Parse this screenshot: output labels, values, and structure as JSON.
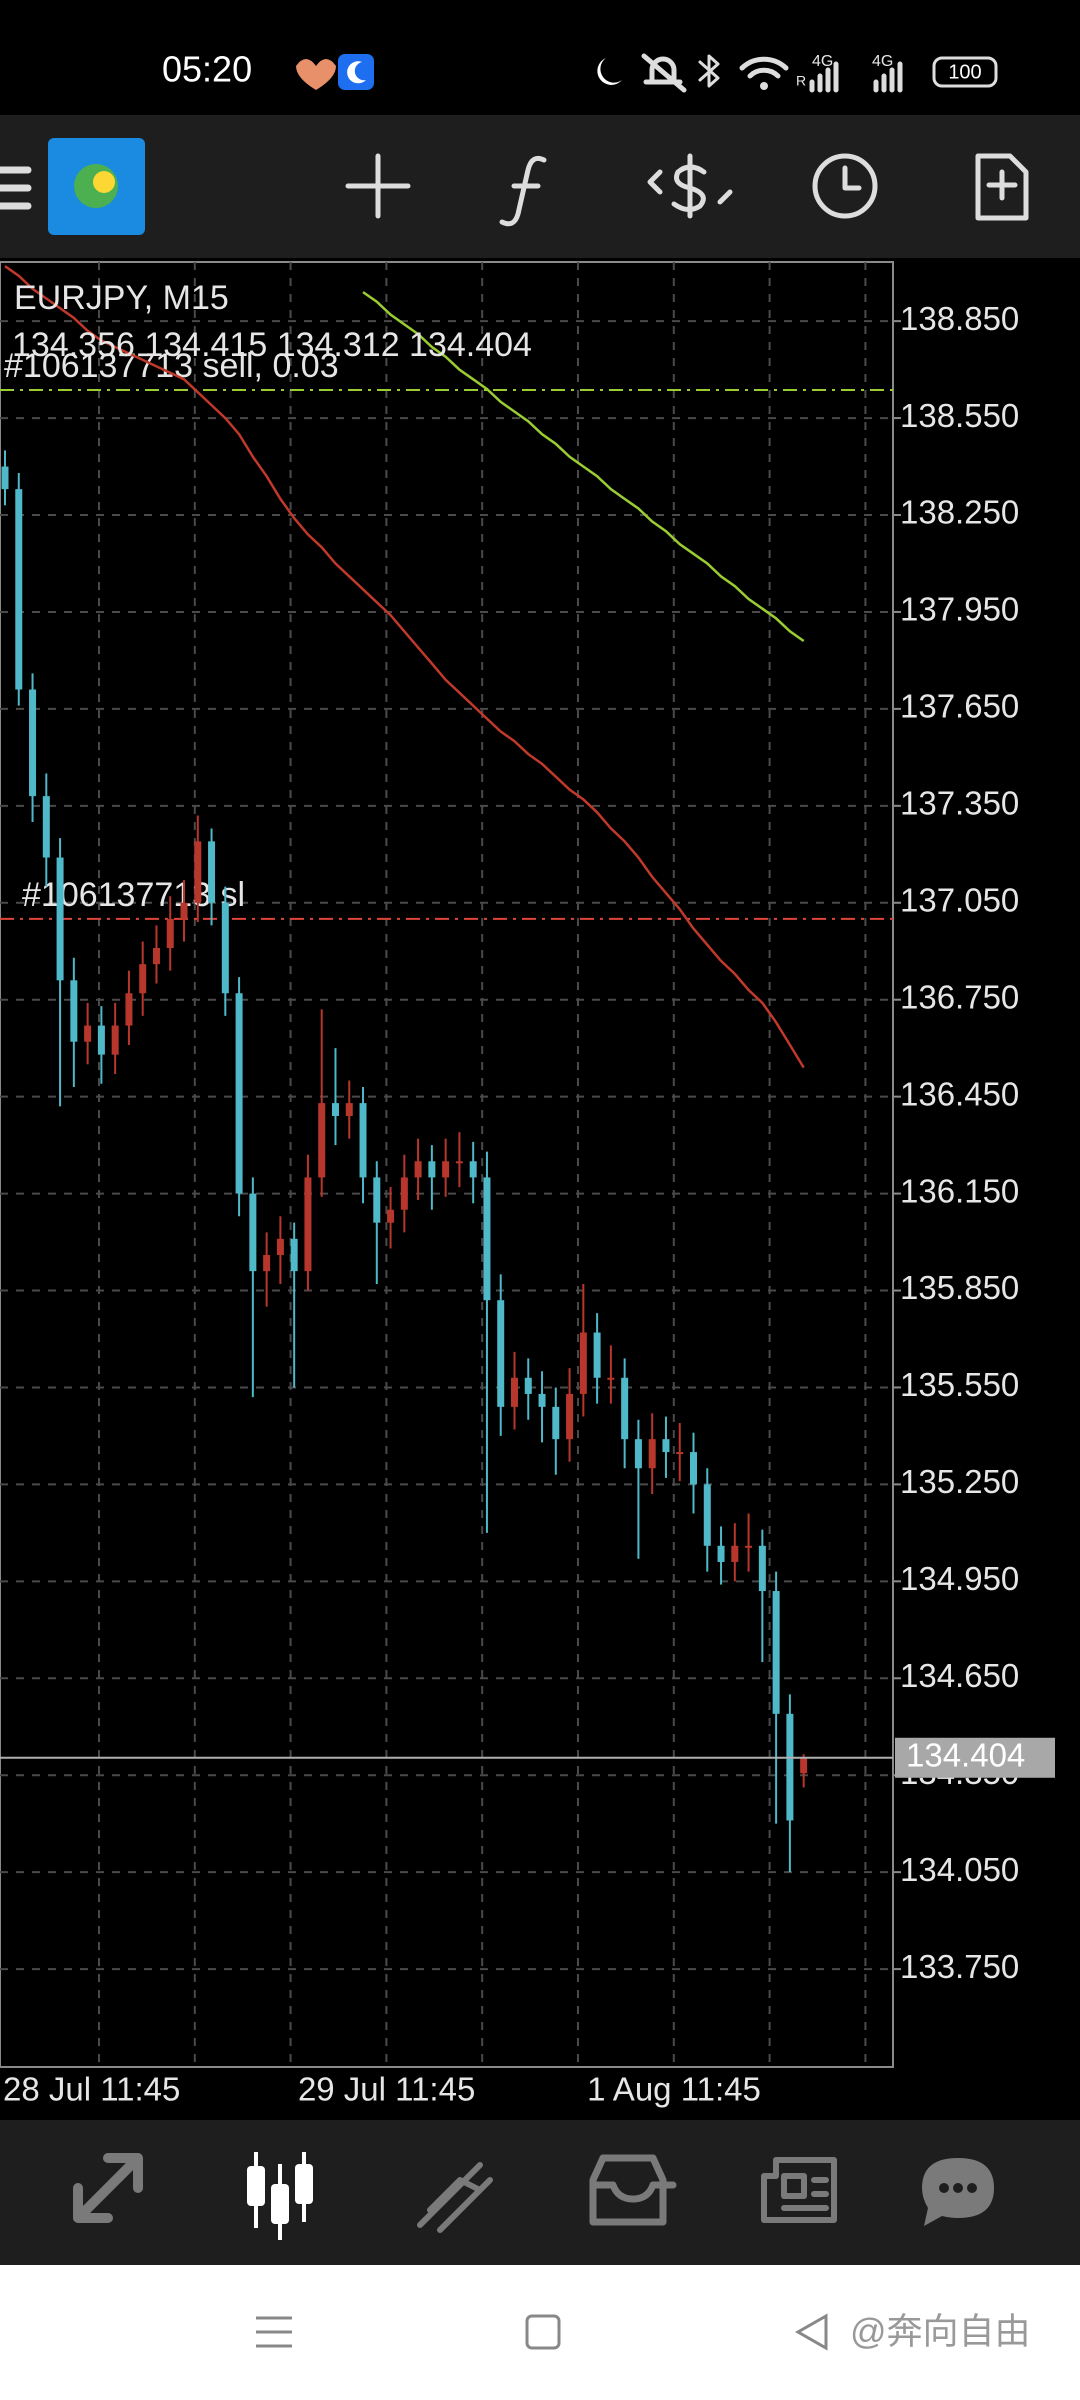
{
  "status_bar": {
    "time": "05:20",
    "network": [
      "4G",
      "4G"
    ],
    "roaming": "R",
    "battery": "100"
  },
  "watermark": "@奔向自由",
  "chart_data": {
    "type": "candlestick",
    "title": "EURJPY, M15",
    "subtitle": "134.356 134.415 134.312 134.404",
    "categories": [
      "28 Jul 11:45",
      null,
      null,
      null,
      null,
      null,
      null,
      null,
      null,
      null,
      null,
      null,
      null,
      null,
      null,
      null,
      null,
      null,
      null,
      null,
      null,
      null,
      "29 Jul 11:45",
      null,
      null,
      null,
      null,
      null,
      null,
      null,
      null,
      null,
      null,
      null,
      null,
      null,
      null,
      null,
      null,
      null,
      null,
      null,
      null,
      "1 Aug 11:45",
      null,
      null,
      null,
      null,
      null,
      null,
      null,
      null,
      null,
      null,
      null,
      null,
      null,
      null,
      null
    ],
    "open": [
      138.4,
      138.33,
      137.71,
      137.38,
      137.19,
      136.81,
      136.62,
      136.67,
      136.58,
      136.67,
      136.77,
      136.86,
      136.91,
      137.0,
      137.05,
      137.24,
      137.05,
      136.77,
      136.15,
      135.91,
      135.96,
      136.01,
      135.91,
      136.2,
      136.43,
      136.39,
      136.43,
      136.2,
      136.06,
      136.1,
      136.2,
      136.25,
      136.2,
      136.25,
      136.25,
      136.2,
      135.82,
      135.49,
      135.58,
      135.53,
      135.49,
      135.39,
      135.53,
      135.72,
      135.58,
      135.58,
      135.39,
      135.3,
      135.39,
      135.35,
      135.35,
      135.25,
      135.06,
      135.01,
      135.06,
      135.06,
      134.92,
      134.54,
      134.356
    ],
    "high": [
      138.45,
      138.38,
      137.76,
      137.45,
      137.25,
      136.88,
      136.74,
      136.73,
      136.74,
      136.84,
      136.93,
      136.98,
      137.07,
      137.12,
      137.32,
      137.28,
      137.1,
      136.82,
      136.2,
      136.03,
      136.08,
      136.06,
      136.27,
      136.72,
      136.6,
      136.5,
      136.48,
      136.25,
      136.17,
      136.27,
      136.32,
      136.3,
      136.32,
      136.34,
      136.31,
      136.28,
      135.9,
      135.66,
      135.64,
      135.6,
      135.55,
      135.61,
      135.87,
      135.78,
      135.68,
      135.64,
      135.45,
      135.47,
      135.46,
      135.44,
      135.41,
      135.3,
      135.12,
      135.13,
      135.16,
      135.11,
      134.98,
      134.6,
      134.415
    ],
    "low": [
      138.28,
      137.66,
      137.3,
      137.1,
      136.42,
      136.48,
      136.55,
      136.49,
      136.52,
      136.61,
      136.7,
      136.8,
      136.84,
      136.93,
      136.99,
      136.98,
      136.7,
      136.08,
      135.52,
      135.8,
      135.87,
      135.55,
      135.85,
      136.14,
      136.3,
      136.32,
      136.12,
      135.87,
      135.98,
      136.03,
      136.13,
      136.1,
      136.14,
      136.17,
      136.12,
      135.1,
      135.4,
      135.42,
      135.45,
      135.38,
      135.28,
      135.32,
      135.46,
      135.5,
      135.5,
      135.3,
      135.02,
      135.22,
      135.27,
      135.26,
      135.16,
      134.98,
      134.94,
      134.95,
      134.98,
      134.7,
      134.2,
      134.05,
      134.312
    ],
    "close": [
      138.33,
      137.71,
      137.38,
      137.19,
      136.81,
      136.62,
      136.67,
      136.58,
      136.67,
      136.77,
      136.86,
      136.91,
      137.0,
      137.05,
      137.24,
      137.05,
      136.77,
      136.15,
      135.91,
      135.96,
      136.01,
      135.91,
      136.2,
      136.43,
      136.39,
      136.43,
      136.2,
      136.06,
      136.1,
      136.2,
      136.25,
      136.2,
      136.25,
      136.25,
      136.2,
      135.82,
      135.49,
      135.58,
      135.53,
      135.49,
      135.39,
      135.53,
      135.72,
      135.58,
      135.58,
      135.39,
      135.3,
      135.39,
      135.35,
      135.35,
      135.25,
      135.06,
      135.01,
      135.06,
      135.06,
      134.92,
      134.54,
      134.21,
      134.404
    ],
    "up_color": "#b8372c",
    "down_color": "#4fb8c9",
    "series": [
      {
        "color": "#c0392b",
        "values": [
          139.02,
          138.99,
          138.95,
          138.92,
          138.89,
          138.86,
          138.82,
          138.79,
          138.77,
          138.75,
          138.73,
          138.71,
          138.69,
          138.67,
          138.63,
          138.59,
          138.55,
          138.5,
          138.43,
          138.37,
          138.3,
          138.24,
          138.19,
          138.15,
          138.1,
          138.06,
          138.02,
          137.98,
          137.94,
          137.89,
          137.84,
          137.79,
          137.74,
          137.7,
          137.66,
          137.62,
          137.58,
          137.55,
          137.51,
          137.48,
          137.44,
          137.4,
          137.37,
          137.33,
          137.28,
          137.24,
          137.19,
          137.13,
          137.08,
          137.03,
          136.97,
          136.92,
          136.87,
          136.83,
          136.78,
          136.74,
          136.68,
          136.61,
          136.54
        ]
      },
      {
        "color": "#9acd32",
        "values": [
          null,
          null,
          null,
          null,
          null,
          null,
          null,
          null,
          null,
          null,
          null,
          null,
          null,
          null,
          null,
          null,
          null,
          null,
          null,
          null,
          null,
          null,
          null,
          null,
          null,
          null,
          138.94,
          138.91,
          138.87,
          138.84,
          138.81,
          138.77,
          138.74,
          138.7,
          138.67,
          138.64,
          138.6,
          138.57,
          138.54,
          138.5,
          138.47,
          138.43,
          138.4,
          138.37,
          138.33,
          138.3,
          138.27,
          138.23,
          138.2,
          138.16,
          138.13,
          138.1,
          138.06,
          138.03,
          137.99,
          137.96,
          137.93,
          137.89,
          137.86
        ]
      }
    ],
    "orders": [
      {
        "label": "#106137713 sell, 0.03",
        "value": 138.637,
        "color": "#9acd32"
      },
      {
        "label": "#106137713 sl",
        "value": 137.0,
        "color": "#e0443a"
      }
    ],
    "current_price": 134.404,
    "ylim": [
      133.447,
      139.033
    ],
    "yticks": [
      {
        "value": 133.75,
        "label": "133.750"
      },
      {
        "value": 134.05,
        "label": "134.050"
      },
      {
        "value": 134.35,
        "label": "134.350"
      },
      {
        "value": 134.65,
        "label": "134.650"
      },
      {
        "value": 134.95,
        "label": "134.950"
      },
      {
        "value": 135.25,
        "label": "135.250"
      },
      {
        "value": 135.55,
        "label": "135.550"
      },
      {
        "value": 135.85,
        "label": "135.850"
      },
      {
        "value": 136.15,
        "label": "136.150"
      },
      {
        "value": 136.45,
        "label": "136.450"
      },
      {
        "value": 136.75,
        "label": "136.750"
      },
      {
        "value": 137.05,
        "label": "137.050"
      },
      {
        "value": 137.35,
        "label": "137.350"
      },
      {
        "value": 137.65,
        "label": "137.650"
      },
      {
        "value": 137.95,
        "label": "137.950"
      },
      {
        "value": 138.25,
        "label": "138.250"
      },
      {
        "value": 138.55,
        "label": "138.550"
      },
      {
        "value": 138.85,
        "label": "138.850"
      }
    ],
    "grid": true
  }
}
